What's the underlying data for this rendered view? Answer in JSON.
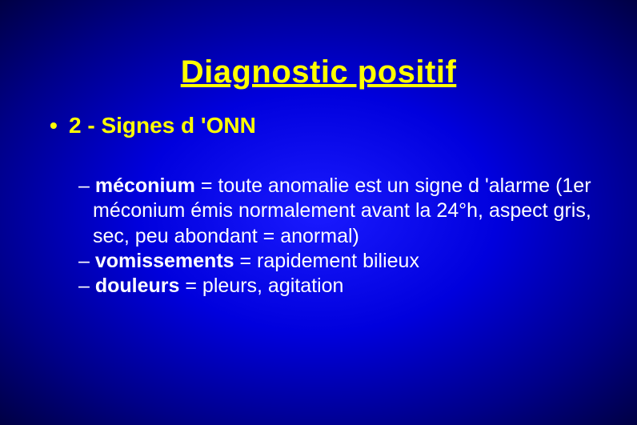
{
  "title": "Diagnostic positif",
  "bullet1": {
    "marker": "•",
    "text": "2 - Signes d 'ONN"
  },
  "subs": [
    {
      "dash": "–",
      "term": "méconium",
      "rest": " = toute anomalie est un signe d 'alarme (1er méconium émis normalement avant la 24°h, aspect gris, sec, peu abondant = anormal)"
    },
    {
      "dash": "–",
      "term": "vomissements",
      "rest": " = rapidement bilieux"
    },
    {
      "dash": "–",
      "term": "douleurs",
      "rest": " = pleurs, agitation"
    }
  ],
  "colors": {
    "title_color": "#ffff00",
    "bullet_color": "#ffff00",
    "sub_color": "#ffffff",
    "bg_center": "#1a1aff",
    "bg_edge": "#000044"
  }
}
